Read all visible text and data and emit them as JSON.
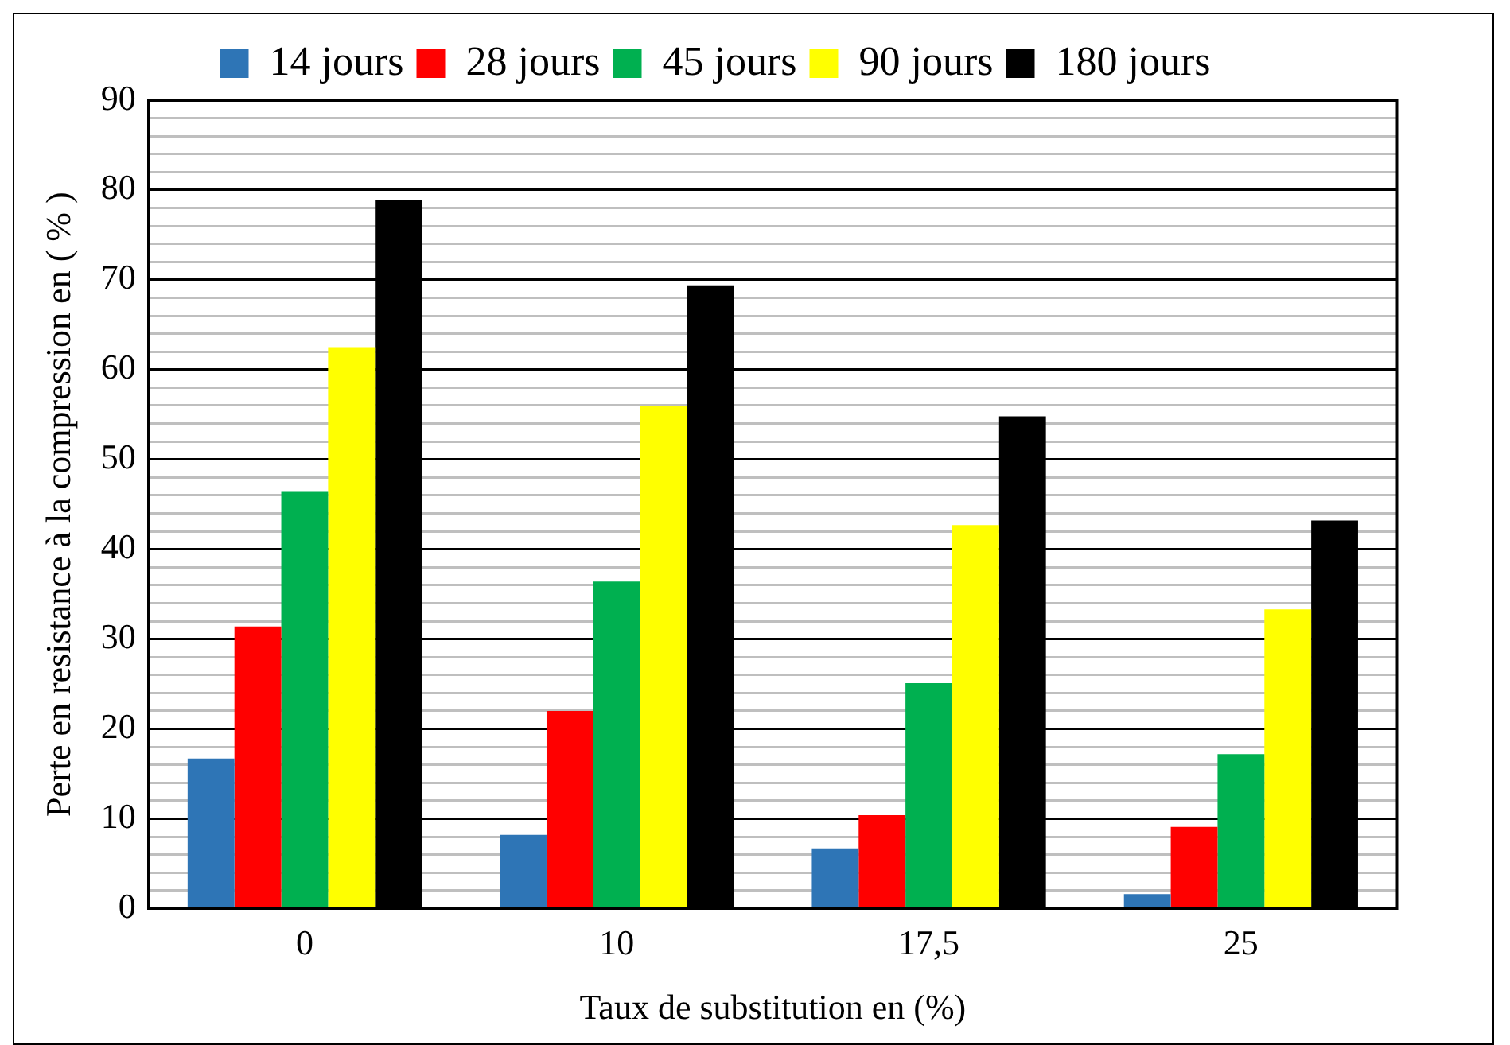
{
  "chart_data": {
    "type": "bar",
    "xlabel": "Taux de substitution en (%)",
    "ylabel": "Perte en resistance à la compression en ( % )",
    "categories": [
      "0",
      "10",
      "17,5",
      "25"
    ],
    "series": [
      {
        "name": "14 jours",
        "color": "#2e75b6",
        "values": [
          16.7,
          8.2,
          6.7,
          1.6
        ]
      },
      {
        "name": "28 jours",
        "color": "#ff0000",
        "values": [
          31.4,
          22.0,
          10.4,
          9.1
        ]
      },
      {
        "name": "45 jours",
        "color": "#00b050",
        "values": [
          46.4,
          36.4,
          25.1,
          17.2
        ]
      },
      {
        "name": "90 jours",
        "color": "#ffff00",
        "values": [
          62.5,
          55.9,
          42.7,
          33.3
        ]
      },
      {
        "name": "180 jours",
        "color": "#000000",
        "values": [
          78.9,
          69.4,
          54.8,
          43.2
        ]
      }
    ],
    "ylim": [
      0,
      90
    ],
    "yticks": [
      0,
      {
        "value": 2,
        "label": null
      },
      {
        "value": 4,
        "label": null
      },
      {
        "value": 6,
        "label": null
      },
      {
        "value": 8,
        "label": null
      },
      10,
      {
        "value": 12,
        "label": null
      },
      {
        "value": 14,
        "label": null
      },
      {
        "value": 16,
        "label": null
      },
      {
        "value": 18,
        "label": null
      },
      20,
      {
        "value": 22,
        "label": null
      },
      {
        "value": 24,
        "label": null
      },
      {
        "value": 26,
        "label": null
      },
      {
        "value": 28,
        "label": null
      },
      30,
      {
        "value": 32,
        "label": null
      },
      {
        "value": 34,
        "label": null
      },
      {
        "value": 36,
        "label": null
      },
      {
        "value": 38,
        "label": null
      },
      40,
      {
        "value": 42,
        "label": null
      },
      {
        "value": 44,
        "label": null
      },
      {
        "value": 46,
        "label": null
      },
      {
        "value": 48,
        "label": null
      },
      50,
      {
        "value": 52,
        "label": null
      },
      {
        "value": 54,
        "label": null
      },
      {
        "value": 56,
        "label": null
      },
      {
        "value": 58,
        "label": null
      },
      60,
      {
        "value": 62,
        "label": null
      },
      {
        "value": 64,
        "label": null
      },
      {
        "value": 66,
        "label": null
      },
      {
        "value": 68,
        "label": null
      },
      70,
      {
        "value": 72,
        "label": null
      },
      {
        "value": 74,
        "label": null
      },
      {
        "value": 76,
        "label": null
      },
      {
        "value": 78,
        "label": null
      },
      80,
      {
        "value": 82,
        "label": null
      },
      {
        "value": 84,
        "label": null
      },
      {
        "value": 86,
        "label": null
      },
      {
        "value": 88,
        "label": null
      },
      90
    ],
    "grid": "y",
    "legend": "top"
  }
}
